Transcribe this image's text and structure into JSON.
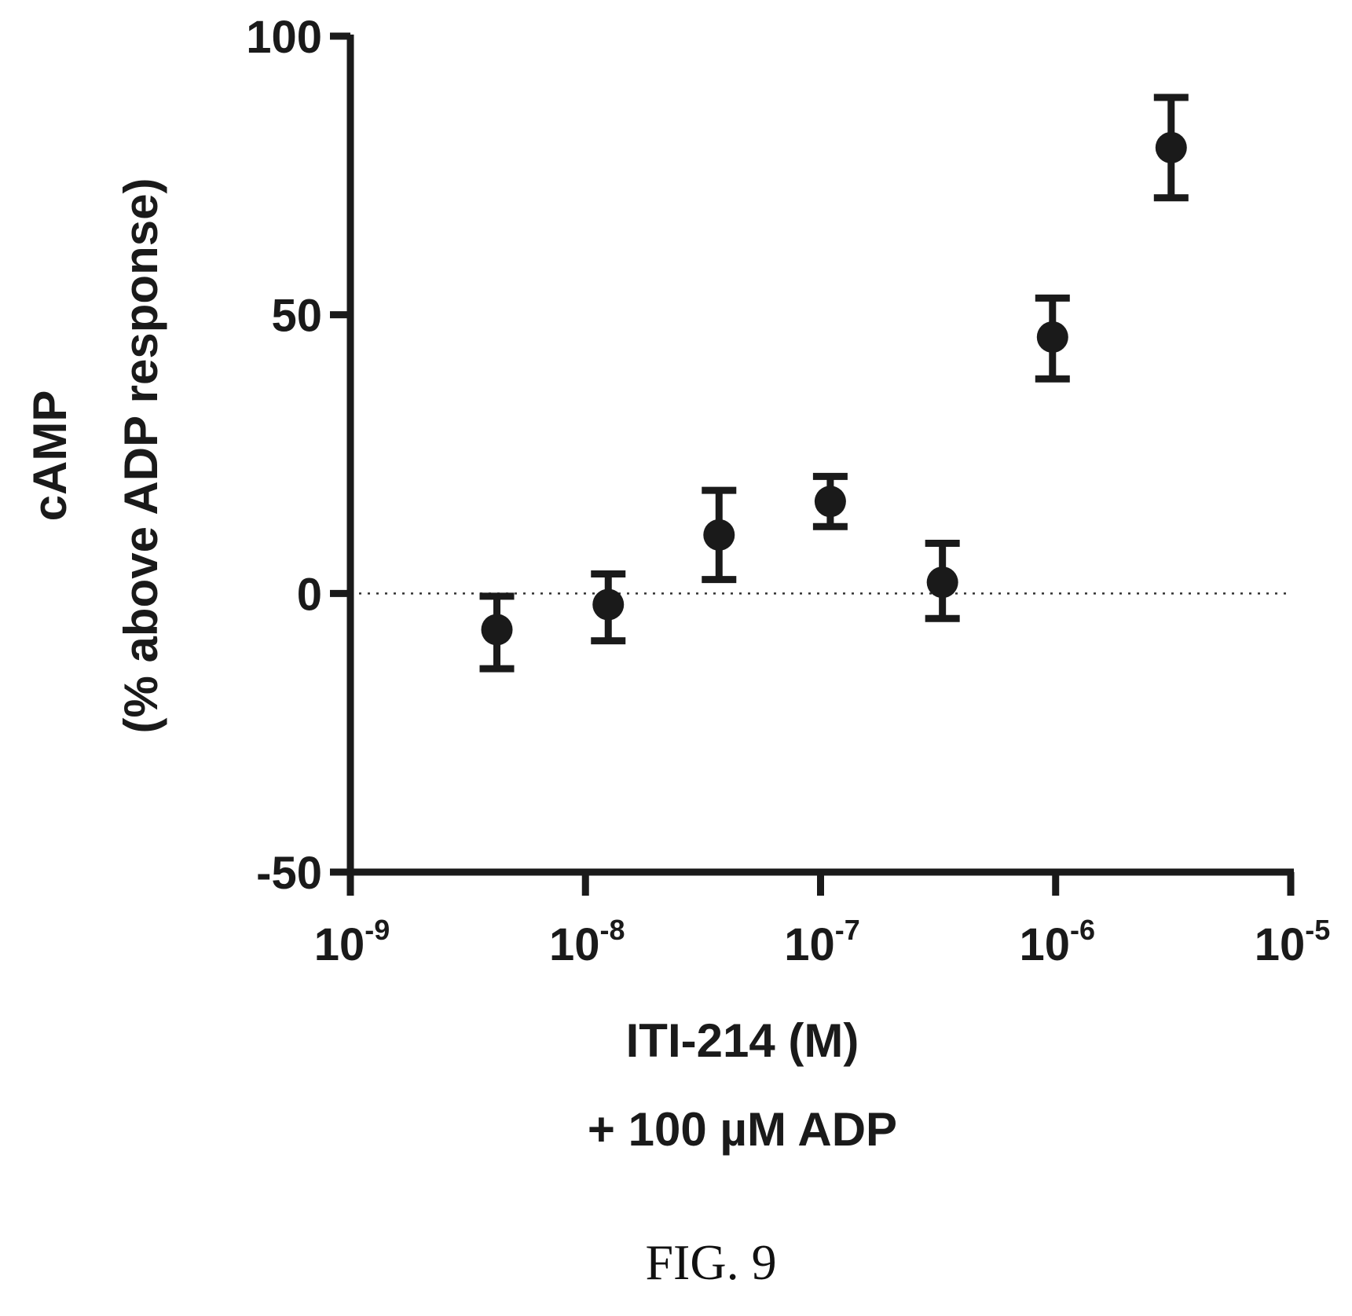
{
  "chart_data": {
    "type": "scatter",
    "x_scale": "log",
    "xlim": [
      1e-09,
      1e-05
    ],
    "ylim": [
      -50,
      100
    ],
    "x_ticks": [
      {
        "value": 1e-09,
        "base": "10",
        "exp": "-9"
      },
      {
        "value": 1e-08,
        "base": "10",
        "exp": "-8"
      },
      {
        "value": 1e-07,
        "base": "10",
        "exp": "-7"
      },
      {
        "value": 1e-06,
        "base": "10",
        "exp": "-6"
      },
      {
        "value": 1e-05,
        "base": "10",
        "exp": "-5"
      }
    ],
    "y_ticks": [
      {
        "value": 100,
        "label": "100"
      },
      {
        "value": 50,
        "label": "50"
      },
      {
        "value": 0,
        "label": "0"
      },
      {
        "value": -50,
        "label": "-50"
      }
    ],
    "xlabel_lines": [
      "ITI-214 (M)",
      "+ 100 µM ADP"
    ],
    "ylabel_lines": [
      "cAMP",
      "(% above ADP response)"
    ],
    "reference_line_y": 0,
    "points": [
      {
        "x": 4.2e-09,
        "y": -6.5,
        "err_low": -13.5,
        "err_high": -0.5
      },
      {
        "x": 1.25e-08,
        "y": -2,
        "err_low": -8.5,
        "err_high": 3.5
      },
      {
        "x": 3.7e-08,
        "y": 10.5,
        "err_low": 2.5,
        "err_high": 18.5
      },
      {
        "x": 1.1e-07,
        "y": 16.5,
        "err_low": 12,
        "err_high": 21
      },
      {
        "x": 3.3e-07,
        "y": 2,
        "err_low": -4.5,
        "err_high": 9
      },
      {
        "x": 9.7e-07,
        "y": 46,
        "err_low": 38.5,
        "err_high": 53
      },
      {
        "x": 3.1e-06,
        "y": 80,
        "err_low": 71,
        "err_high": 89
      }
    ],
    "marker_color": "#1a1a1a"
  },
  "figure_label": "FIG. 9"
}
